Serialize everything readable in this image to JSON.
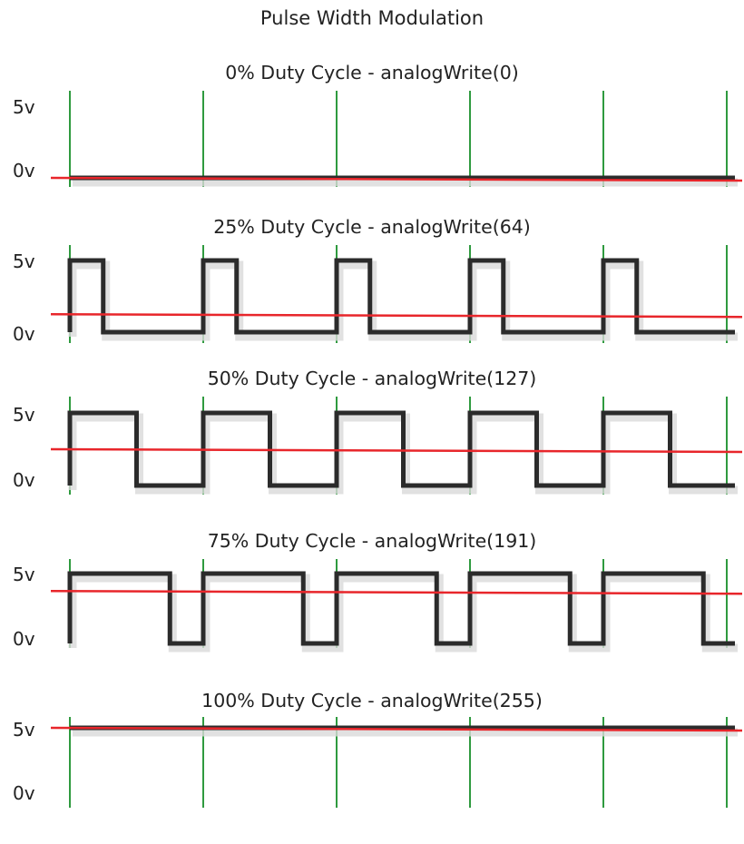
{
  "title": "Pulse Width Modulation",
  "labels": {
    "high": "5v",
    "low": "0v"
  },
  "colors": {
    "signal": "#2b2b2b",
    "average": "#e8262b",
    "grid": "#2f9a3f",
    "shadow": "#d9d9d9"
  },
  "panels": [
    {
      "title": "0% Duty Cycle - analogWrite(0)",
      "duty": 0
    },
    {
      "title": "25% Duty Cycle - analogWrite(64)",
      "duty": 0.25
    },
    {
      "title": "50% Duty Cycle - analogWrite(127)",
      "duty": 0.5
    },
    {
      "title": "75% Duty Cycle - analogWrite(191)",
      "duty": 0.75
    },
    {
      "title": "100% Duty Cycle - analogWrite(255)",
      "duty": 1
    }
  ]
}
